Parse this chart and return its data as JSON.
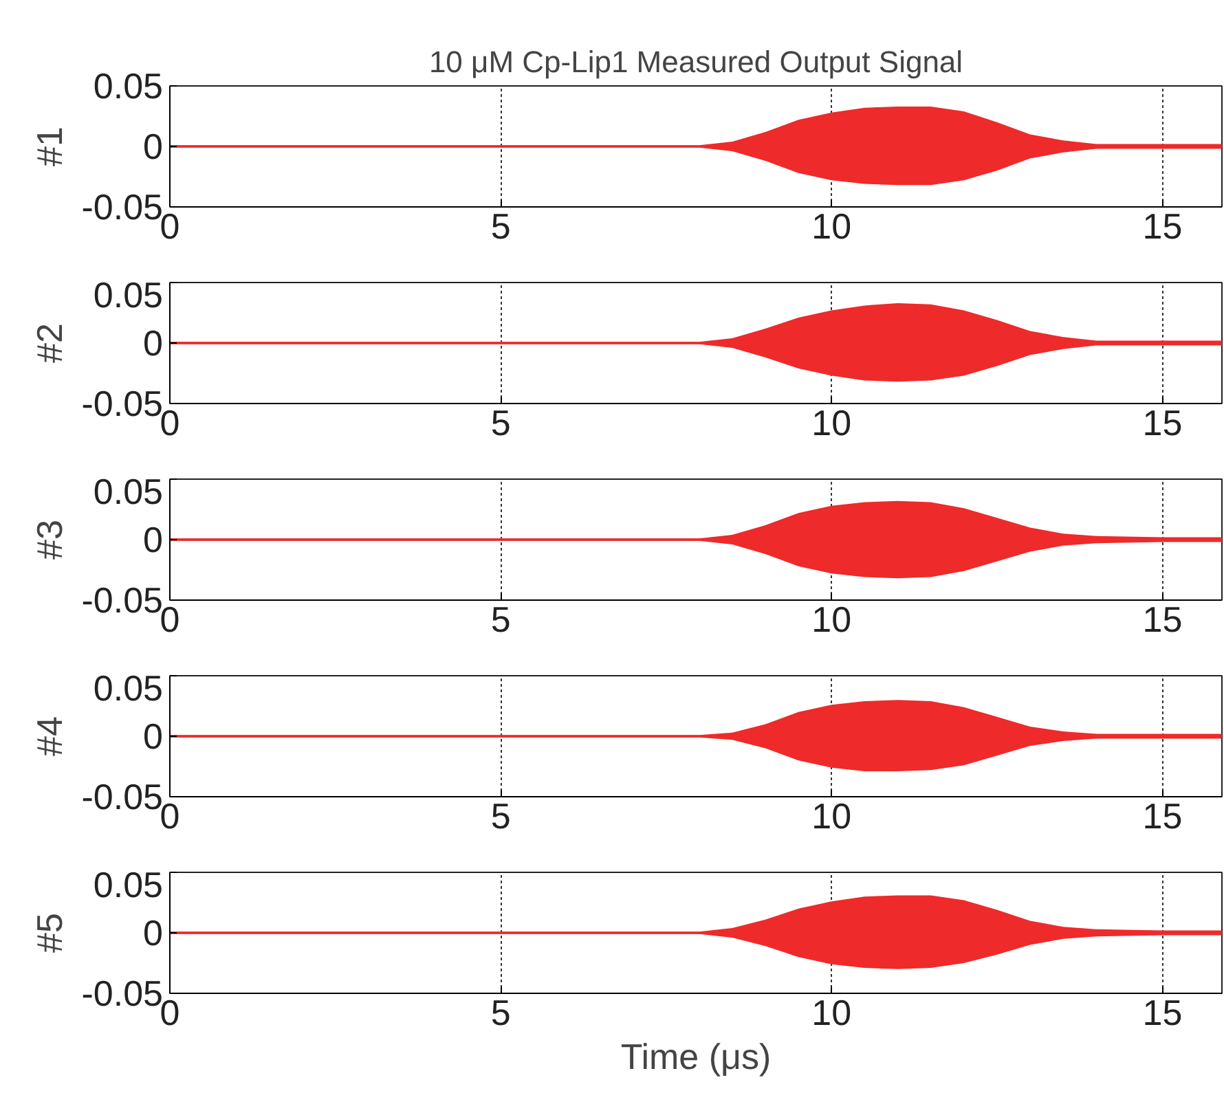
{
  "chart_data": [
    {
      "type": "line",
      "title": "10 μM Cp-Lip1 Measured Output Signal",
      "ylabel": "#1",
      "x": [
        0,
        8,
        8.5,
        9,
        9.5,
        10,
        10.5,
        11,
        11.5,
        12,
        12.5,
        13,
        13.5,
        14,
        15,
        15.9
      ],
      "xlim": [
        0,
        15.9
      ],
      "xticks": [
        0,
        5,
        10,
        15
      ],
      "ylim": [
        -0.05,
        0.05
      ],
      "yticks": [
        0.05,
        0,
        -0.05
      ],
      "grid": "x",
      "series": [
        {
          "color": "#ee2a2a",
          "values": [
            0,
            0,
            0,
            0,
            0,
            0,
            0,
            0,
            0,
            0,
            0,
            0,
            0,
            0,
            0,
            0
          ],
          "upper": [
            0.001,
            0.001,
            0.004,
            0.012,
            0.022,
            0.028,
            0.032,
            0.033,
            0.033,
            0.029,
            0.02,
            0.01,
            0.005,
            0.002,
            0.002,
            0.002
          ],
          "lower": [
            -0.001,
            -0.001,
            -0.004,
            -0.012,
            -0.022,
            -0.028,
            -0.031,
            -0.032,
            -0.032,
            -0.028,
            -0.02,
            -0.01,
            -0.005,
            -0.002,
            -0.002,
            -0.002
          ]
        }
      ]
    },
    {
      "type": "line",
      "ylabel": "#2",
      "x": [
        0,
        8,
        8.5,
        9,
        9.5,
        10,
        10.5,
        11,
        11.5,
        12,
        12.5,
        13,
        13.5,
        14,
        15,
        15.9
      ],
      "xlim": [
        0,
        15.9
      ],
      "xticks": [
        0,
        5,
        10,
        15
      ],
      "ylim": [
        -0.05,
        0.05
      ],
      "yticks": [
        0.05,
        0,
        -0.05
      ],
      "grid": "x",
      "series": [
        {
          "color": "#ee2a2a",
          "values": [
            0,
            0,
            0,
            0,
            0,
            0,
            0,
            0,
            0,
            0,
            0,
            0,
            0,
            0,
            0,
            0
          ],
          "upper": [
            0.001,
            0.001,
            0.004,
            0.012,
            0.021,
            0.027,
            0.031,
            0.033,
            0.032,
            0.027,
            0.019,
            0.01,
            0.005,
            0.002,
            0.002,
            0.002
          ],
          "lower": [
            -0.001,
            -0.001,
            -0.004,
            -0.012,
            -0.021,
            -0.027,
            -0.031,
            -0.032,
            -0.031,
            -0.027,
            -0.019,
            -0.01,
            -0.005,
            -0.002,
            -0.002,
            -0.002
          ]
        }
      ]
    },
    {
      "type": "line",
      "ylabel": "#3",
      "x": [
        0,
        8,
        8.5,
        9,
        9.5,
        10,
        10.5,
        11,
        11.5,
        12,
        12.5,
        13,
        13.5,
        14,
        15,
        15.9
      ],
      "xlim": [
        0,
        15.9
      ],
      "xticks": [
        0,
        5,
        10,
        15
      ],
      "ylim": [
        -0.05,
        0.05
      ],
      "yticks": [
        0.05,
        0,
        -0.05
      ],
      "grid": "x",
      "series": [
        {
          "color": "#ee2a2a",
          "values": [
            0,
            0,
            0,
            0,
            0,
            0,
            0,
            0,
            0,
            0,
            0,
            0,
            0,
            0,
            0,
            0
          ],
          "upper": [
            0.001,
            0.001,
            0.004,
            0.012,
            0.022,
            0.028,
            0.031,
            0.032,
            0.031,
            0.026,
            0.018,
            0.01,
            0.005,
            0.003,
            0.002,
            0.002
          ],
          "lower": [
            -0.001,
            -0.001,
            -0.004,
            -0.012,
            -0.022,
            -0.028,
            -0.031,
            -0.032,
            -0.031,
            -0.026,
            -0.018,
            -0.01,
            -0.005,
            -0.003,
            -0.002,
            -0.002
          ]
        }
      ]
    },
    {
      "type": "line",
      "ylabel": "#4",
      "x": [
        0,
        8,
        8.5,
        9,
        9.5,
        10,
        10.5,
        11,
        11.5,
        12,
        12.5,
        13,
        13.5,
        14,
        15,
        15.9
      ],
      "xlim": [
        0,
        15.9
      ],
      "xticks": [
        0,
        5,
        10,
        15
      ],
      "ylim": [
        -0.05,
        0.05
      ],
      "yticks": [
        0.05,
        0,
        -0.05
      ],
      "grid": "x",
      "series": [
        {
          "color": "#ee2a2a",
          "values": [
            0,
            0,
            0,
            0,
            0,
            0,
            0,
            0,
            0,
            0,
            0,
            0,
            0,
            0,
            0,
            0
          ],
          "upper": [
            0.001,
            0.001,
            0.003,
            0.01,
            0.02,
            0.026,
            0.029,
            0.03,
            0.029,
            0.024,
            0.016,
            0.008,
            0.004,
            0.002,
            0.002,
            0.002
          ],
          "lower": [
            -0.001,
            -0.001,
            -0.003,
            -0.01,
            -0.02,
            -0.026,
            -0.029,
            -0.029,
            -0.028,
            -0.024,
            -0.016,
            -0.008,
            -0.004,
            -0.002,
            -0.002,
            -0.002
          ]
        }
      ]
    },
    {
      "type": "line",
      "ylabel": "#5",
      "xlabel": "Time (μs)",
      "x": [
        0,
        8,
        8.5,
        9,
        9.5,
        10,
        10.5,
        11,
        11.5,
        12,
        12.5,
        13,
        13.5,
        14,
        15,
        15.9
      ],
      "xlim": [
        0,
        15.9
      ],
      "xticks": [
        0,
        5,
        10,
        15
      ],
      "ylim": [
        -0.05,
        0.05
      ],
      "yticks": [
        0.05,
        0,
        -0.05
      ],
      "grid": "x",
      "series": [
        {
          "color": "#ee2a2a",
          "values": [
            0,
            0,
            0,
            0,
            0,
            0,
            0,
            0,
            0,
            0,
            0,
            0,
            0,
            0,
            0,
            0
          ],
          "upper": [
            0.001,
            0.001,
            0.004,
            0.011,
            0.02,
            0.026,
            0.03,
            0.031,
            0.031,
            0.027,
            0.019,
            0.01,
            0.005,
            0.003,
            0.002,
            0.002
          ],
          "lower": [
            -0.001,
            -0.001,
            -0.004,
            -0.011,
            -0.02,
            -0.026,
            -0.029,
            -0.03,
            -0.029,
            -0.025,
            -0.018,
            -0.01,
            -0.005,
            -0.003,
            -0.002,
            -0.002
          ]
        }
      ]
    }
  ]
}
